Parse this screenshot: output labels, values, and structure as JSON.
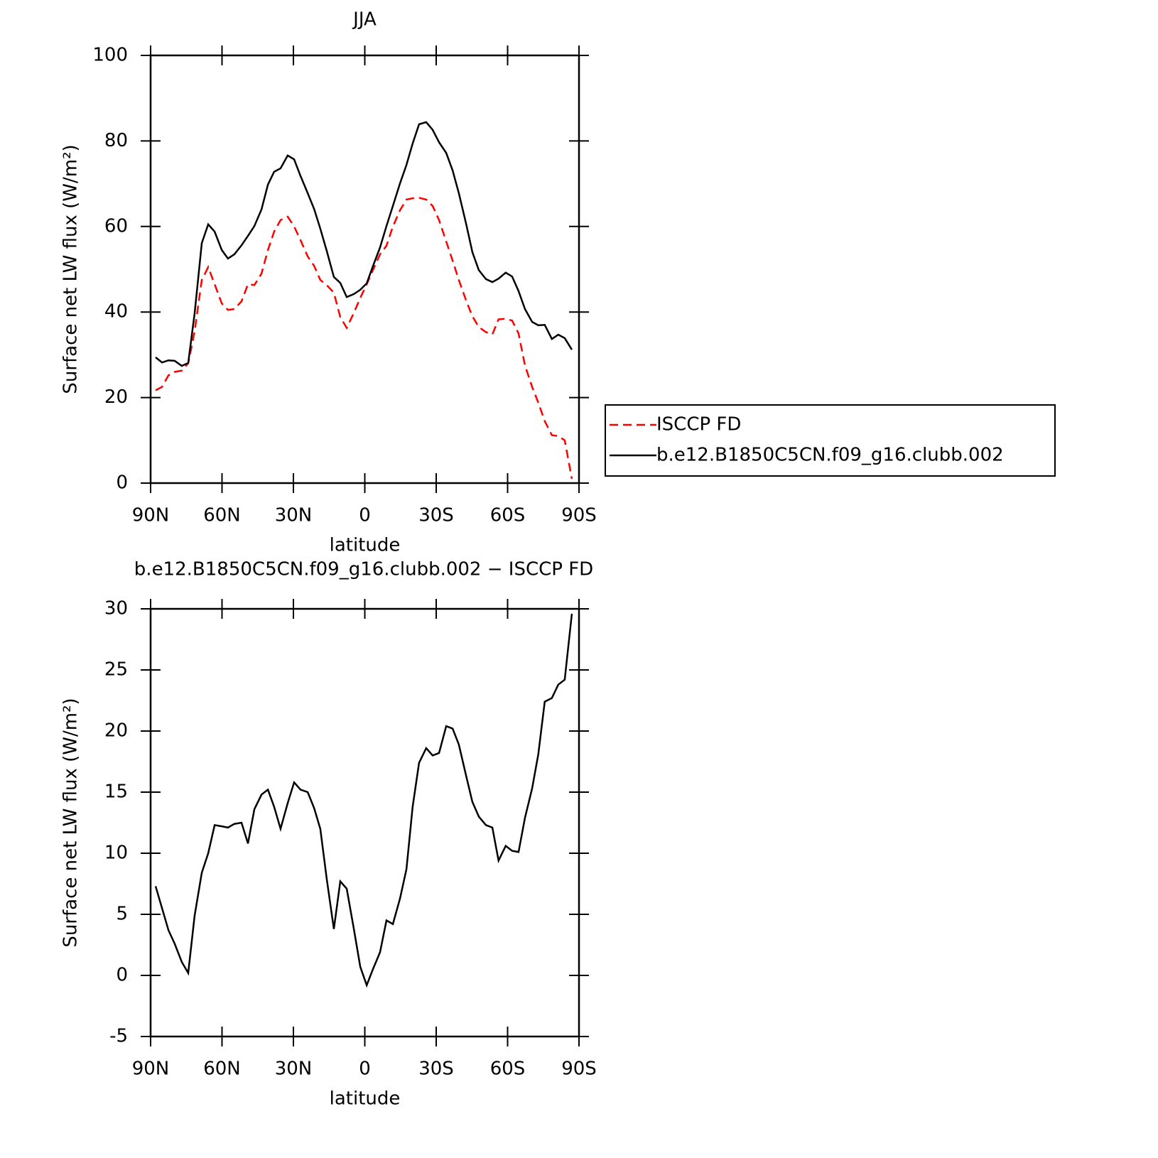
{
  "chart_data": [
    {
      "type": "line",
      "title": "JJA",
      "xlabel": "latitude",
      "ylabel": "Surface net LW flux (W/m²)",
      "x": [
        87.9,
        85.2,
        82.5,
        79.9,
        76.9,
        74.2,
        71.5,
        68.5,
        65.8,
        63.1,
        60.1,
        57.5,
        54.8,
        51.8,
        49.1,
        46.4,
        43.4,
        40.7,
        38.1,
        35.4,
        32.4,
        29.7,
        27.0,
        24.0,
        21.3,
        18.7,
        16.0,
        13.0,
        10.3,
        7.6,
        4.6,
        1.9,
        -0.8,
        -3.4,
        -6.4,
        -9.1,
        -11.8,
        -14.8,
        -17.5,
        -20.1,
        -22.8,
        -25.8,
        -28.5,
        -31.2,
        -34.2,
        -36.9,
        -39.5,
        -42.5,
        -45.2,
        -47.9,
        -50.9,
        -53.6,
        -56.2,
        -59.2,
        -61.9,
        -64.6,
        -67.3,
        -70.3,
        -72.9,
        -75.6,
        -78.6,
        -81.3,
        -84.0,
        -87.0
      ],
      "series": [
        {
          "name": "ISCCP FD",
          "color": "#ff0000",
          "line_style": "dashed",
          "values": [
            21.7,
            22.5,
            25.2,
            26.0,
            26.3,
            28.0,
            35.5,
            47.5,
            50.5,
            46.5,
            42.0,
            40.5,
            40.7,
            42.5,
            46.5,
            46.3,
            49.0,
            54.5,
            58.8,
            61.5,
            62.3,
            60.0,
            56.8,
            53.0,
            50.8,
            47.5,
            46.3,
            44.5,
            38.8,
            36.3,
            39.8,
            43.3,
            46.5,
            49.8,
            53.5,
            55.5,
            60.0,
            63.8,
            66.3,
            66.6,
            66.7,
            66.3,
            64.8,
            61.5,
            56.5,
            52.0,
            47.5,
            42.8,
            39.0,
            36.5,
            35.3,
            34.8,
            38.3,
            38.4,
            38.0,
            35.0,
            27.5,
            22.5,
            18.8,
            14.5,
            11.2,
            11.0,
            10.0,
            1.0
          ]
        },
        {
          "name": "b.e12.B1850C5CN.f09_g16.clubb.002",
          "color": "#000000",
          "line_style": "solid",
          "values": [
            29.4,
            28.2,
            28.7,
            28.6,
            27.4,
            28.1,
            39.7,
            56.1,
            60.5,
            58.8,
            54.5,
            52.5,
            53.5,
            55.6,
            57.8,
            60.1,
            64.0,
            69.8,
            72.8,
            73.6,
            76.6,
            75.7,
            71.8,
            67.8,
            64.1,
            59.5,
            54.3,
            48.2,
            46.8,
            43.5,
            44.2,
            45.2,
            46.7,
            50.7,
            55.1,
            60.1,
            64.8,
            70.1,
            74.4,
            79.4,
            83.9,
            84.4,
            82.6,
            79.7,
            77.2,
            73.1,
            67.8,
            60.8,
            54.0,
            49.8,
            47.7,
            47.0,
            47.8,
            49.2,
            48.3,
            44.9,
            40.7,
            37.7,
            36.9,
            37.0,
            33.7,
            34.7,
            33.9,
            31.2
          ]
        }
      ],
      "xlim": [
        90,
        -90
      ],
      "xticks": [
        {
          "value": 90,
          "label": "90N"
        },
        {
          "value": 60,
          "label": "60N"
        },
        {
          "value": 30,
          "label": "30N"
        },
        0,
        {
          "value": -30,
          "label": "30S"
        },
        {
          "value": -60,
          "label": "60S"
        },
        {
          "value": -90,
          "label": "90S"
        }
      ],
      "ylim": [
        0,
        100
      ],
      "yticks": [
        0,
        20,
        40,
        60,
        80,
        100
      ],
      "legend": "right"
    },
    {
      "type": "line",
      "title": "b.e12.B1850C5CN.f09_g16.clubb.002 − ISCCP FD",
      "xlabel": "latitude",
      "ylabel": "Surface net LW flux (W/m²)",
      "x": [
        87.9,
        85.2,
        82.5,
        79.9,
        76.9,
        74.2,
        71.5,
        68.5,
        65.8,
        63.1,
        60.1,
        57.5,
        54.8,
        51.8,
        49.1,
        46.4,
        43.4,
        40.7,
        38.1,
        35.4,
        32.4,
        29.7,
        27.0,
        24.0,
        21.3,
        18.7,
        16.0,
        13.0,
        10.3,
        7.6,
        4.6,
        1.9,
        -0.8,
        -3.4,
        -6.4,
        -9.1,
        -11.8,
        -14.8,
        -17.5,
        -20.1,
        -22.8,
        -25.8,
        -28.5,
        -31.2,
        -34.2,
        -36.9,
        -39.5,
        -42.5,
        -45.2,
        -47.9,
        -50.9,
        -53.6,
        -56.2,
        -59.2,
        -61.9,
        -64.6,
        -67.3,
        -70.3,
        -72.9,
        -75.6,
        -78.6,
        -81.3,
        -84.0,
        -87.0
      ],
      "series": [
        {
          "color": "#000000",
          "line_style": "solid",
          "values": [
            7.3,
            5.5,
            3.7,
            2.6,
            1.1,
            0.2,
            4.9,
            8.4,
            10.0,
            12.3,
            12.2,
            12.1,
            12.4,
            12.5,
            10.8,
            13.6,
            14.8,
            15.2,
            13.8,
            12.0,
            14.1,
            15.8,
            15.2,
            15.0,
            13.7,
            12.0,
            7.9,
            3.8,
            7.7,
            7.1,
            3.8,
            0.7,
            -0.8,
            0.5,
            1.9,
            4.5,
            4.2,
            6.3,
            8.7,
            13.8,
            17.4,
            18.6,
            18.0,
            18.2,
            20.4,
            20.2,
            18.9,
            16.4,
            14.2,
            13.0,
            12.3,
            12.1,
            9.4,
            10.6,
            10.2,
            10.1,
            12.9,
            15.3,
            18.1,
            22.4,
            22.7,
            23.8,
            24.2,
            29.6
          ]
        }
      ],
      "xlim": [
        90,
        -90
      ],
      "xticks": [
        {
          "value": 90,
          "label": "90N"
        },
        {
          "value": 60,
          "label": "60N"
        },
        {
          "value": 30,
          "label": "30N"
        },
        0,
        {
          "value": -30,
          "label": "30S"
        },
        {
          "value": -60,
          "label": "60S"
        },
        {
          "value": -90,
          "label": "90S"
        }
      ],
      "ylim": [
        -5,
        30
      ],
      "yticks": [
        -5,
        0,
        5,
        10,
        15,
        20,
        25,
        30
      ]
    }
  ]
}
